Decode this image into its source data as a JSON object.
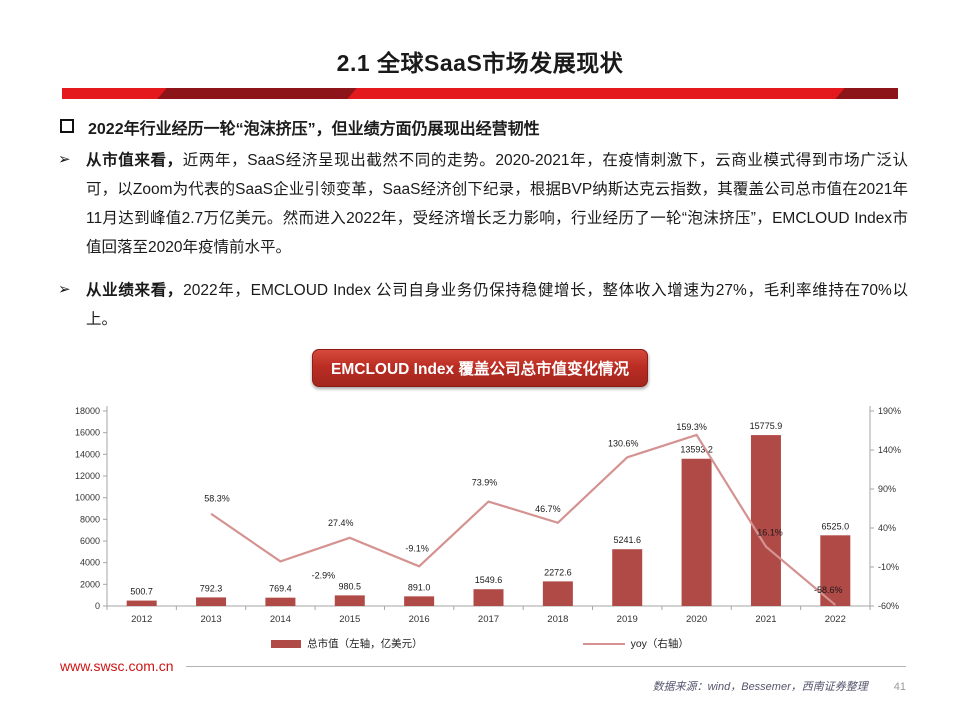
{
  "colors": {
    "accent_red": "#e3191d",
    "accent_dark": "#8d1418",
    "badge_red": "#bb2d23",
    "bar": "#b04a46",
    "line": "#d49290",
    "site_red": "#cc1414"
  },
  "header": {
    "title": "2.1 全球SaaS市场发展现状"
  },
  "bullets": {
    "heading": "2022年行业经历一轮“泡沫挤压”，但业绩方面仍展现出经营韧性",
    "p1_lead": "从市值来看，",
    "p1_body": "近两年，SaaS经济呈现出截然不同的走势。2020-2021年，在疫情刺激下，云商业模式得到市场广泛认可，以Zoom为代表的SaaS企业引领变革，SaaS经济创下纪录，根据BVP纳斯达克云指数，其覆盖公司总市值在2021年11月达到峰值2.7万亿美元。然而进入2022年，受经济增长乏力影响，行业经历了一轮“泡沫挤压”，EMCLOUD Index市值回落至2020年疫情前水平。",
    "p2_lead": "从业绩来看，",
    "p2_body": "2022年，EMCLOUD  Index  公司自身业务仍保持稳健增长，整体收入增速为27%，毛利率维持在70%以上。"
  },
  "chart_badge": "EMCLOUD Index 覆盖公司总市值变化情况",
  "chart_data": {
    "type": "bar+line",
    "title": "EMCLOUD Index 覆盖公司总市值变化情况",
    "categories": [
      "2012",
      "2013",
      "2014",
      "2015",
      "2016",
      "2017",
      "2018",
      "2019",
      "2020",
      "2021",
      "2022"
    ],
    "series": [
      {
        "name": "总市值（左轴，亿美元）",
        "type": "bar",
        "axis": "left",
        "values": [
          500.7,
          792.3,
          769.4,
          980.5,
          891.0,
          1549.6,
          2272.6,
          5241.6,
          13593.2,
          15775.9,
          6525.0
        ],
        "labels": [
          "500.7",
          "792.3",
          "769.4",
          "980.5",
          "891.0",
          "1549.6",
          "2272.6",
          "5241.6",
          "13593.2",
          "15775.9",
          "6525.0"
        ]
      },
      {
        "name": "yoy（右轴）",
        "type": "line",
        "axis": "right",
        "values": [
          null,
          58.3,
          -2.9,
          27.4,
          -9.1,
          73.9,
          46.7,
          130.6,
          159.3,
          16.1,
          -58.6
        ],
        "labels": [
          null,
          "58.3%",
          "-2.9%",
          "27.4%",
          "-9.1%",
          "73.9%",
          "46.7%",
          "130.6%",
          "159.3%",
          "16.1%",
          "-58.6%"
        ]
      }
    ],
    "left_axis": {
      "min": 0,
      "max": 18000,
      "step": 2000,
      "ticks": [
        "0",
        "2000",
        "4000",
        "6000",
        "8000",
        "10000",
        "12000",
        "14000",
        "16000",
        "18000"
      ]
    },
    "right_axis": {
      "min": -60,
      "max": 190,
      "step": 50,
      "ticks": [
        "-60%",
        "-10%",
        "40%",
        "90%",
        "140%",
        "190%"
      ]
    },
    "legend_position": "bottom",
    "grid": false
  },
  "legend": {
    "bar_label": "总市值（左轴，亿美元）",
    "line_label": "yoy（右轴）"
  },
  "footer": {
    "site": "www.swsc.com.cn",
    "source": "数据来源：wind，Bessemer，西南证券整理",
    "page": "41"
  }
}
